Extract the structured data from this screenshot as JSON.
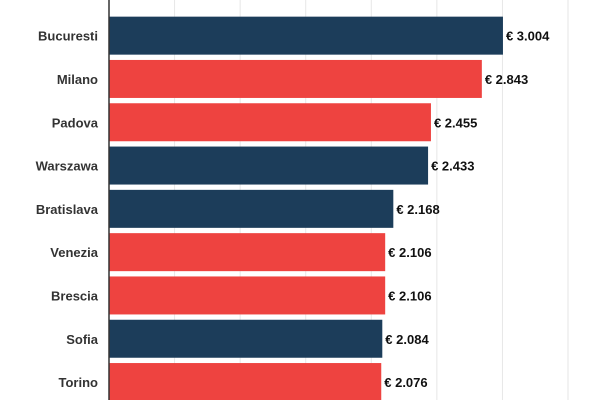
{
  "chart_data": {
    "type": "bar",
    "orientation": "horizontal",
    "categories": [
      "Bucuresti",
      "Milano",
      "Padova",
      "Warszawa",
      "Bratislava",
      "Venezia",
      "Brescia",
      "Sofia",
      "Torino"
    ],
    "values": [
      3004,
      2843,
      2455,
      2433,
      2168,
      2106,
      2106,
      2084,
      2076
    ],
    "value_labels": [
      "€ 3.004",
      "€ 2.843",
      "€ 2.455",
      "€ 2.433",
      "€ 2.168",
      "€ 2.106",
      "€ 2.106",
      "€ 2.084",
      "€ 2.076"
    ],
    "bar_colors": [
      "#1c3d5a",
      "#ee4340",
      "#ee4340",
      "#1c3d5a",
      "#1c3d5a",
      "#ee4340",
      "#ee4340",
      "#1c3d5a",
      "#ee4340"
    ],
    "xlim": [
      0,
      3500
    ],
    "grid": true,
    "title": "",
    "xlabel": "",
    "ylabel": ""
  }
}
